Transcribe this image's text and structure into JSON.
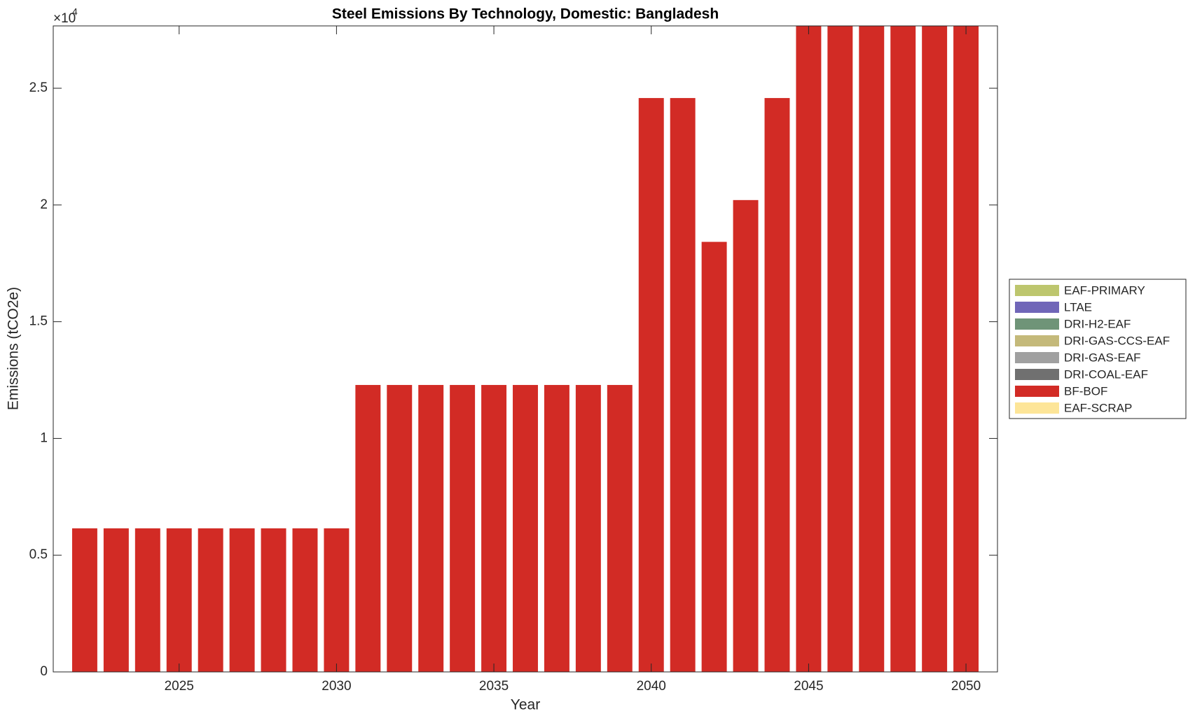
{
  "chart_data": {
    "type": "stacked_bar",
    "title": "Steel Emissions By Technology, Domestic: Bangladesh",
    "xlabel": "Year",
    "ylabel": "Emissions (tCO2e)",
    "y_multiplier": {
      "base": "×10",
      "exponent": 4
    },
    "x": [
      2022,
      2023,
      2024,
      2025,
      2026,
      2027,
      2028,
      2029,
      2030,
      2031,
      2032,
      2033,
      2034,
      2035,
      2036,
      2037,
      2038,
      2039,
      2040,
      2041,
      2042,
      2043,
      2044,
      2045,
      2046,
      2047,
      2048,
      2049,
      2050
    ],
    "xlim": [
      2021,
      2051
    ],
    "xticks": [
      2025,
      2030,
      2035,
      2040,
      2045,
      2050
    ],
    "ylim": [
      0,
      27670
    ],
    "yticks": [
      {
        "value": 0,
        "label": "0"
      },
      {
        "value": 5000,
        "label": "0.5"
      },
      {
        "value": 10000,
        "label": "1"
      },
      {
        "value": 15000,
        "label": "1.5"
      },
      {
        "value": 20000,
        "label": "2"
      },
      {
        "value": 25000,
        "label": "2.5"
      }
    ],
    "legend_position": "east-outside",
    "series": [
      {
        "name": "EAF-PRIMARY",
        "color": "#bdc66e",
        "values": [
          0,
          0,
          0,
          0,
          0,
          0,
          0,
          0,
          0,
          0,
          0,
          0,
          0,
          0,
          0,
          0,
          0,
          0,
          0,
          0,
          0,
          0,
          0,
          0,
          0,
          0,
          0,
          0,
          0
        ]
      },
      {
        "name": "LTAE",
        "color": "#7066b8",
        "values": [
          0,
          0,
          0,
          0,
          0,
          0,
          0,
          0,
          0,
          0,
          0,
          0,
          0,
          0,
          0,
          0,
          0,
          0,
          0,
          0,
          0,
          0,
          0,
          0,
          0,
          0,
          0,
          0,
          0
        ]
      },
      {
        "name": "DRI-H2-EAF",
        "color": "#6f9478",
        "values": [
          0,
          0,
          0,
          0,
          0,
          0,
          0,
          0,
          0,
          0,
          0,
          0,
          0,
          0,
          0,
          0,
          0,
          0,
          0,
          0,
          0,
          0,
          0,
          0,
          0,
          0,
          0,
          0,
          0
        ]
      },
      {
        "name": "DRI-GAS-CCS-EAF",
        "color": "#c4b97a",
        "values": [
          0,
          0,
          0,
          0,
          0,
          0,
          0,
          0,
          0,
          0,
          0,
          0,
          0,
          0,
          0,
          0,
          0,
          0,
          0,
          0,
          0,
          0,
          0,
          0,
          0,
          0,
          0,
          0,
          0
        ]
      },
      {
        "name": "DRI-GAS-EAF",
        "color": "#a0a0a0",
        "values": [
          0,
          0,
          0,
          0,
          0,
          0,
          0,
          0,
          0,
          0,
          0,
          0,
          0,
          0,
          0,
          0,
          0,
          0,
          0,
          0,
          0,
          0,
          0,
          0,
          0,
          0,
          0,
          0,
          0
        ]
      },
      {
        "name": "DRI-COAL-EAF",
        "color": "#707070",
        "values": [
          0,
          0,
          0,
          0,
          0,
          0,
          0,
          0,
          0,
          0,
          0,
          0,
          0,
          0,
          0,
          0,
          0,
          0,
          0,
          0,
          0,
          0,
          0,
          0,
          0,
          0,
          0,
          0,
          0
        ]
      },
      {
        "name": "BF-BOF",
        "color": "#d22b25",
        "values": [
          6150,
          6150,
          6150,
          6150,
          6150,
          6150,
          6150,
          6150,
          6150,
          12290,
          12290,
          12290,
          12290,
          12290,
          12290,
          12290,
          12290,
          12290,
          24580,
          24580,
          18420,
          20210,
          24580,
          27670,
          27670,
          27670,
          27670,
          27670,
          27670
        ]
      },
      {
        "name": "EAF-SCRAP",
        "color": "#fde598",
        "values": [
          0,
          0,
          0,
          0,
          0,
          0,
          0,
          0,
          0,
          0,
          0,
          0,
          0,
          0,
          0,
          0,
          0,
          0,
          0,
          0,
          0,
          0,
          0,
          0,
          0,
          0,
          0,
          0,
          0
        ]
      }
    ]
  }
}
